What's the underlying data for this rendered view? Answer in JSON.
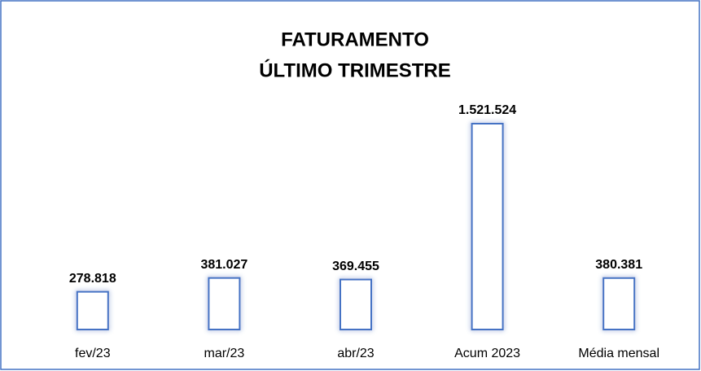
{
  "chart_data": {
    "type": "bar",
    "title": [
      "FATURAMENTO",
      "ÚLTIMO TRIMESTRE"
    ],
    "categories": [
      "fev/23",
      "mar/23",
      "abr/23",
      "Acum 2023",
      "Média mensal"
    ],
    "values": [
      278818,
      381027,
      369455,
      1521524,
      380381
    ],
    "value_labels": [
      "278.818",
      "381.027",
      "369.455",
      "1.521.524",
      "380.381"
    ],
    "color": "#4472c4"
  }
}
